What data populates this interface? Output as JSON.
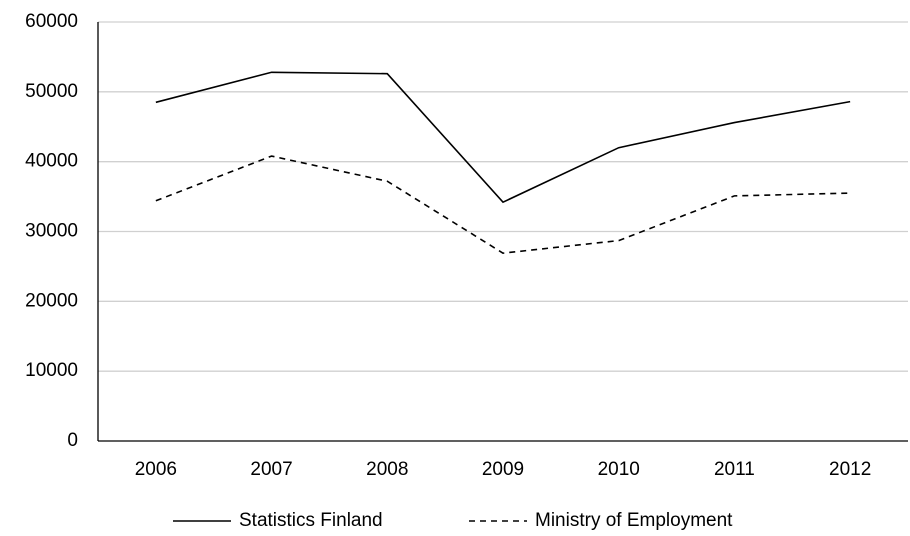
{
  "chart_data": {
    "type": "line",
    "categories": [
      "2006",
      "2007",
      "2008",
      "2009",
      "2010",
      "2011",
      "2012"
    ],
    "series": [
      {
        "name": "Statistics Finland",
        "color": "#000000",
        "line_style": "solid",
        "values": [
          48500,
          52800,
          52600,
          34200,
          42000,
          45600,
          48600
        ]
      },
      {
        "name": "Ministry of Employment",
        "color": "#000000",
        "line_style": "dashed",
        "values": [
          34400,
          40800,
          37200,
          26900,
          28700,
          35100,
          35500
        ]
      }
    ],
    "ylim": [
      0,
      60000
    ],
    "yticks": [
      0,
      10000,
      20000,
      30000,
      40000,
      50000,
      60000
    ],
    "grid": true,
    "legend": "bottom"
  }
}
